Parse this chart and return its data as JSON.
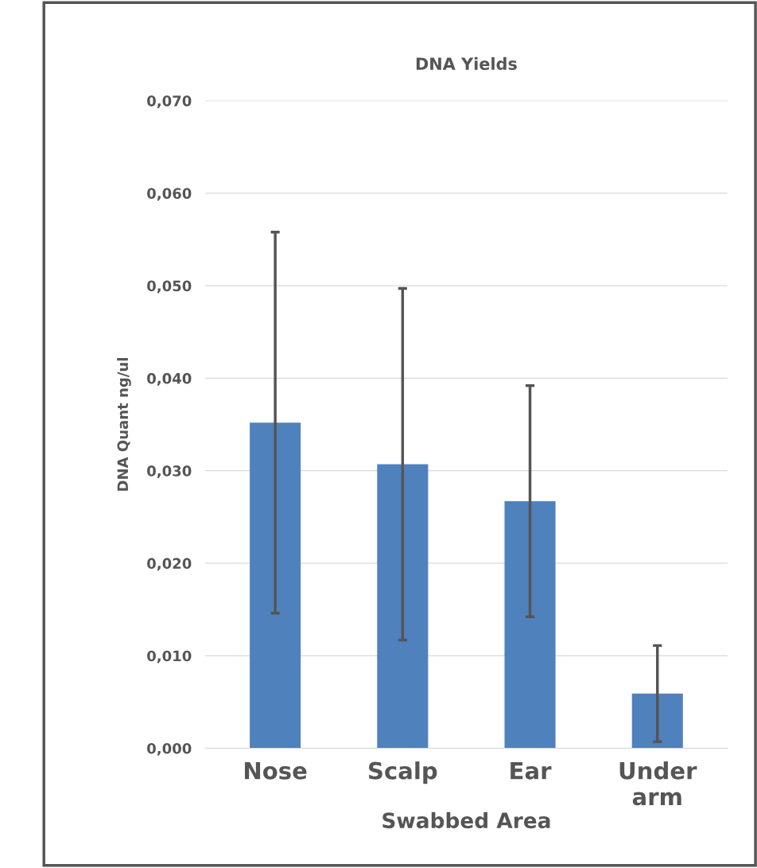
{
  "chart_data": {
    "type": "bar",
    "title": "DNA Yields",
    "xlabel": "Swabbed Area",
    "ylabel": "DNA Quant ng/ul",
    "categories": [
      "Nose",
      "Scalp",
      "Ear",
      "Under\narm"
    ],
    "values": [
      0.0352,
      0.0307,
      0.0267,
      0.0059
    ],
    "errors": [
      0.0206,
      0.019,
      0.0125,
      0.0052
    ],
    "color": "#4f81bd",
    "ylim": [
      0,
      0.07
    ],
    "yticks": [
      {
        "value": 0,
        "label": "0,000"
      },
      {
        "value": 0.01,
        "label": "0,010"
      },
      {
        "value": 0.02,
        "label": "0,020"
      },
      {
        "value": 0.03,
        "label": "0,030"
      },
      {
        "value": 0.04,
        "label": "0,040"
      },
      {
        "value": 0.05,
        "label": "0,050"
      },
      {
        "value": 0.06,
        "label": "0,060"
      },
      {
        "value": 0.07,
        "label": "0,070"
      }
    ],
    "grid": "y",
    "legend": false
  }
}
